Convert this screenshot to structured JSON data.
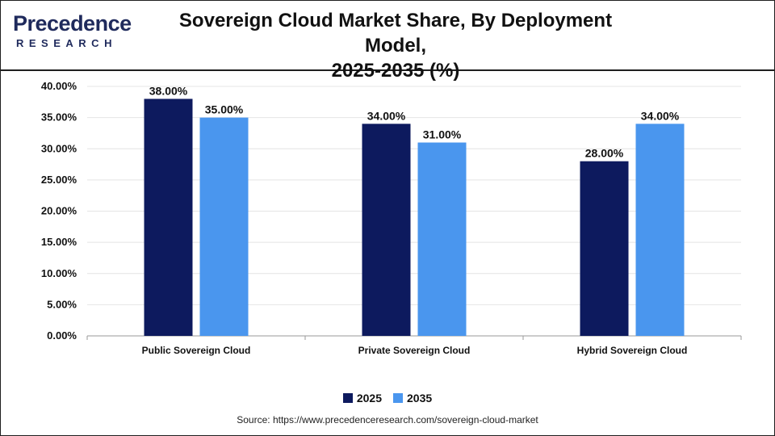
{
  "brand": {
    "name_line1": "Precedence",
    "name_line2": "RESEARCH"
  },
  "source_text": "Source: https://www.precedenceresearch.com/sovereign-cloud-market",
  "colors": {
    "series_2025": "#0d1a5e",
    "series_2035": "#4a96ee",
    "grid": "#e4e4e4",
    "axis": "#999999"
  },
  "chart_data": {
    "type": "bar",
    "title_line1": "Sovereign Cloud Market Share, By Deployment Model,",
    "title_line2": "2025-2035 (%)",
    "categories": [
      "Public Sovereign Cloud",
      "Private Sovereign Cloud",
      "Hybrid Sovereign Cloud"
    ],
    "series": [
      {
        "name": "2025",
        "values": [
          38.0,
          34.0,
          28.0
        ],
        "labels": [
          "38.00%",
          "34.00%",
          "28.00%"
        ]
      },
      {
        "name": "2035",
        "values": [
          35.0,
          31.0,
          34.0
        ],
        "labels": [
          "35.00%",
          "31.00%",
          "34.00%"
        ]
      }
    ],
    "ylim": [
      0,
      40
    ],
    "yticks": [
      0,
      5,
      10,
      15,
      20,
      25,
      30,
      35,
      40
    ],
    "ytick_labels": [
      "0.00%",
      "5.00%",
      "10.00%",
      "15.00%",
      "20.00%",
      "25.00%",
      "30.00%",
      "35.00%",
      "40.00%"
    ],
    "xlabel": "",
    "ylabel": "",
    "grid": true,
    "legend_position": "bottom"
  }
}
